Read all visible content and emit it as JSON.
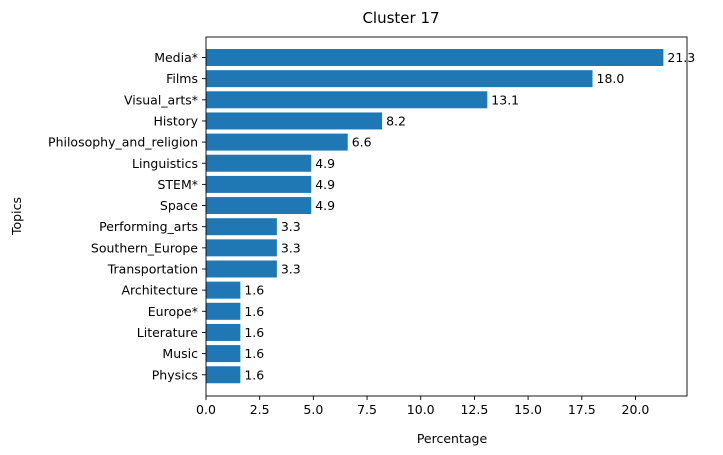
{
  "chart_data": {
    "type": "bar",
    "orientation": "horizontal",
    "title": "Cluster 17",
    "xlabel": "Percentage",
    "ylabel": "Topics",
    "categories": [
      "Media*",
      "Films",
      "Visual_arts*",
      "History",
      "Philosophy_and_religion",
      "Linguistics",
      "STEM*",
      "Space",
      "Performing_arts",
      "Southern_Europe",
      "Transportation",
      "Architecture",
      "Europe*",
      "Literature",
      "Music",
      "Physics"
    ],
    "values": [
      21.3,
      18.0,
      13.1,
      8.2,
      6.6,
      4.9,
      4.9,
      4.9,
      3.3,
      3.3,
      3.3,
      1.6,
      1.6,
      1.6,
      1.6,
      1.6
    ],
    "value_labels": [
      "21.3",
      "18.0",
      "13.1",
      "8.2",
      "6.6",
      "4.9",
      "4.9",
      "4.9",
      "3.3",
      "3.3",
      "3.3",
      "1.6",
      "1.6",
      "1.6",
      "1.6",
      "1.6"
    ],
    "xticks": [
      "0.0",
      "2.5",
      "5.0",
      "7.5",
      "10.0",
      "12.5",
      "15.0",
      "17.5",
      "20.0"
    ],
    "xlim": [
      0,
      22.4
    ],
    "grid": false,
    "bar_color": "#1f77b4"
  }
}
